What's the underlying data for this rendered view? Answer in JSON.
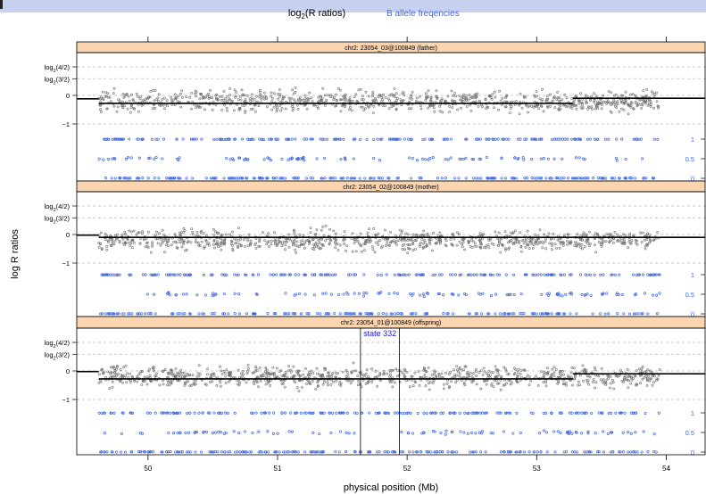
{
  "chart_data": {
    "type": "scatter",
    "legend": {
      "items": [
        {
          "name_main": "log",
          "name_sub": "2",
          "name_rest": "(R ratios)",
          "color": "#000000"
        },
        {
          "name": "B allele freqencies",
          "color": "#4169e1"
        }
      ],
      "placement": "top"
    },
    "xlabel": "physical position (Mb)",
    "ylabel": "log R ratios",
    "xlim": [
      49.45,
      54.3
    ],
    "x_ticks": [
      "50",
      "51",
      "52",
      "53",
      "54"
    ],
    "x_tick_values": [
      50,
      51,
      52,
      53,
      54
    ],
    "left_ticks": [
      {
        "main": "log",
        "sub": "2",
        "rest": "(4/2)",
        "value": 1.0
      },
      {
        "main": "log",
        "sub": "2",
        "rest": "(3/2)",
        "value": 0.585
      },
      {
        "main": "",
        "sub": "",
        "rest": "0",
        "value": 0
      },
      {
        "main": "",
        "sub": "",
        "rest": "−1",
        "value": -1
      }
    ],
    "right_ticks": [
      {
        "label": "1",
        "value": 1
      },
      {
        "label": "0.5",
        "value": 0.5
      },
      {
        "label": "0",
        "value": 0
      }
    ],
    "colors": {
      "logr": "#6e6e6e",
      "baf": "#4169e1",
      "strip": "#fbd5b0",
      "segment": "#000000",
      "annotation": "#1a1ae6"
    },
    "grid": true,
    "panels": [
      {
        "title": "chr2: 23054_03@100849 (father)",
        "segments": [
          {
            "x": [
              49.45,
              49.62
            ],
            "y": -0.12
          },
          {
            "x": [
              49.62,
              53.28
            ],
            "y": -0.28
          },
          {
            "x": [
              53.28,
              54.3
            ],
            "y": -0.1
          }
        ],
        "het_gaps": [],
        "region": null
      },
      {
        "title": "chr2: 23054_02@100849 (mother)",
        "segments": [
          {
            "x": [
              49.45,
              49.62
            ],
            "y": -0.02
          },
          {
            "x": [
              49.62,
              54.3
            ],
            "y": -0.1
          }
        ],
        "het_gaps": [
          [
            49.62,
            49.98
          ],
          [
            51.42,
            51.47
          ]
        ],
        "region": null
      },
      {
        "title": "chr2: 23054_01@100849 (offspring)",
        "segments": [
          {
            "x": [
              49.45,
              49.62
            ],
            "y": -0.02
          },
          {
            "x": [
              49.62,
              53.28
            ],
            "y": -0.28
          },
          {
            "x": [
              53.28,
              54.3
            ],
            "y": -0.1
          }
        ],
        "het_gaps": [
          [
            51.64,
            51.94
          ]
        ],
        "region": {
          "x": [
            51.64,
            51.94
          ],
          "label": "state 332"
        }
      }
    ]
  }
}
